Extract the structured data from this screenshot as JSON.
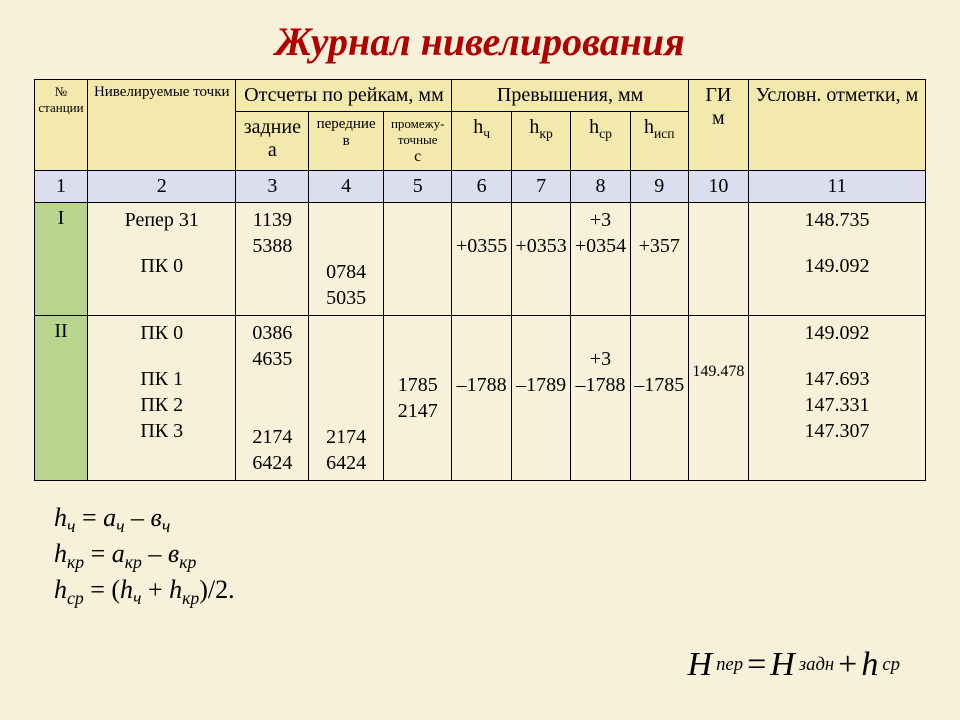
{
  "title": "Журнал нивелирования",
  "header": {
    "col1": "№",
    "col1b": "станции",
    "col2": "Нивелируемые точки",
    "group3": "Отсчеты по рейкам, мм",
    "col3": "задние",
    "col3b": "а",
    "col4": "передние",
    "col4b": "в",
    "col5": "промежу-",
    "col5a": "точные",
    "col5b": "с",
    "group6": "Превышения, мм",
    "col6": "h",
    "col6s": "ч",
    "col7": "h",
    "col7s": "кр",
    "col8": "h",
    "col8s": "ср",
    "col9": "h",
    "col9s": "исп",
    "col10": "ГИ",
    "col10b": "м",
    "col11": "Условн. отметки, м"
  },
  "numrow": [
    "1",
    "2",
    "3",
    "4",
    "5",
    "6",
    "7",
    "8",
    "9",
    "10",
    "11"
  ],
  "row1": {
    "st": "I",
    "pts_a": "Репер 31",
    "pts_b": "ПК 0",
    "za_a": "1139",
    "za_b": "5388",
    "pe_a": "0784",
    "pe_b": "5035",
    "pr": "",
    "hch": "+0355",
    "hkr": "+0353",
    "hsr_a": "+3",
    "hsr_b": "+0354",
    "hisp": "+357",
    "gi": "",
    "mk_a": "148.735",
    "mk_b": "149.092"
  },
  "row2": {
    "st": "II",
    "pt0": "ПК 0",
    "pt1": "ПК 1",
    "pt2": "ПК 2",
    "pt3": "ПК 3",
    "za_a": "0386",
    "za_b": "4635",
    "pe_a": "2174",
    "pe_b": "6424",
    "pr_a": "1785",
    "pr_b": "2147",
    "hch": "–1788",
    "hkr": "–1789",
    "hsr_a": "+3",
    "hsr_b": "–1788",
    "hisp": "–1785",
    "gi": "149.478",
    "mk0": "149.092",
    "mk1": "147.693",
    "mk2": "147.331",
    "mk3": "147.307"
  },
  "formulas": {
    "f1_l": "h",
    "f1_ls": "ч",
    "f1_eq": " = ",
    "f1_a": "а",
    "f1_as": "ч",
    "f1_m": " – ",
    "f1_b": "в",
    "f1_bs": "ч",
    "f2_l": "h",
    "f2_ls": "кр",
    "f2_eq": " = ",
    "f2_a": "а",
    "f2_as": "кр",
    "f2_m": " – ",
    "f2_b": "в",
    "f2_bs": "кр",
    "f3_l": "h",
    "f3_ls": "ср",
    "f3_eq": " = (",
    "f3_a": "h",
    "f3_as": "ч",
    "f3_p": " + ",
    "f3_b": "h",
    "f3_bs": "кр",
    "f3_end": ")/2."
  },
  "bigfrm": {
    "H": "H",
    "per": "пер",
    "eq": "=",
    "H2": "H",
    "zad": "задн",
    "plus": "+",
    "h": "h",
    "cp": "ср"
  }
}
